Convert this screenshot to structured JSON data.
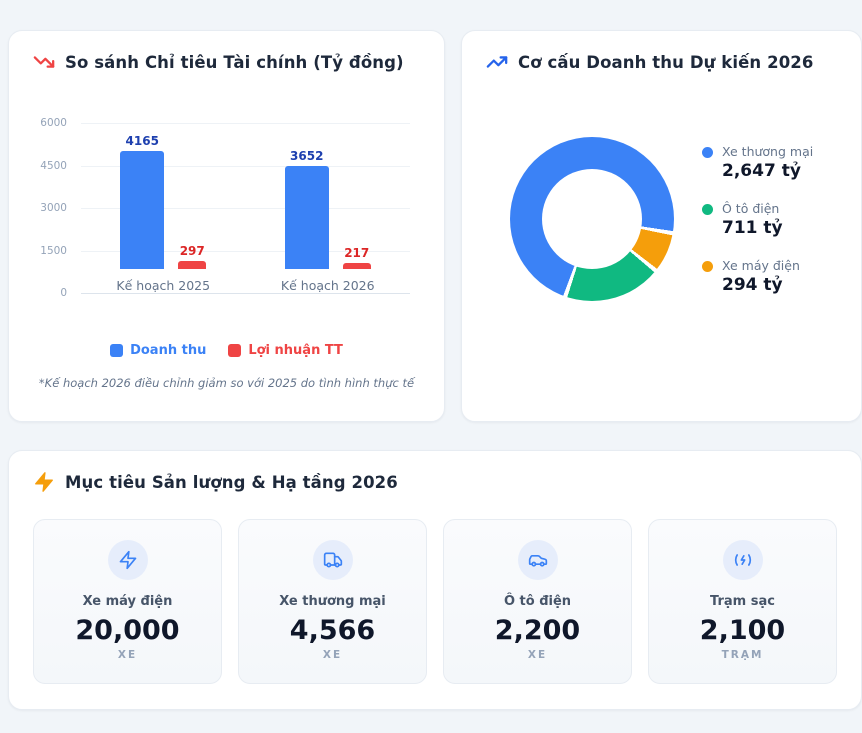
{
  "page": {
    "background": "#f1f5f9",
    "accent_blue": "#3b82f6",
    "accent_red": "#ef4444",
    "accent_green": "#10b981",
    "accent_orange": "#f59e0b"
  },
  "financial_card": {
    "title": "So sánh Chỉ tiêu Tài chính (Tỷ đồng)",
    "footnote": "*Kế hoạch 2026 điều chỉnh giảm so với 2025 do tình hình thực tế"
  },
  "revenue_card": {
    "title": "Cơ cấu Doanh thu Dự kiến 2026"
  },
  "chart_data": [
    {
      "type": "bar",
      "title": "So sánh Chỉ tiêu Tài chính (Tỷ đồng)",
      "categories": [
        "Kế hoạch 2025",
        "Kế hoạch 2026"
      ],
      "series": [
        {
          "name": "Doanh thu",
          "color": "#3b82f6",
          "value_color": "#1e40af",
          "values": [
            4165,
            3652
          ]
        },
        {
          "name": "Lợi nhuận TT",
          "color": "#ef4444",
          "value_color": "#dc2626",
          "values": [
            297,
            217
          ]
        }
      ],
      "ylim": [
        0,
        6000
      ],
      "yticks": [
        6000,
        4500,
        3000,
        1500,
        0
      ],
      "grid": true,
      "legend_position": "bottom"
    },
    {
      "type": "pie",
      "donut": true,
      "title": "Cơ cấu Doanh thu Dự kiến 2026",
      "labels": [
        "Xe thương mại",
        "Ô tô điện",
        "Xe máy điện"
      ],
      "values": [
        2647,
        711,
        294
      ],
      "value_labels": [
        "2,647 tỷ",
        "711 tỷ",
        "294 tỷ"
      ],
      "colors": [
        "#3b82f6",
        "#10b981",
        "#f59e0b"
      ],
      "start_angle": 100,
      "legend_position": "right"
    }
  ],
  "targets_card": {
    "title": "Mục tiêu Sản lượng & Hạ tầng 2026",
    "tiles": [
      {
        "label": "Xe máy điện",
        "value": "20,000",
        "unit": "XE",
        "icon": "bolt-icon"
      },
      {
        "label": "Xe thương mại",
        "value": "4,566",
        "unit": "XE",
        "icon": "truck-icon"
      },
      {
        "label": "Ô tô điện",
        "value": "2,200",
        "unit": "XE",
        "icon": "car-icon"
      },
      {
        "label": "Trạm sạc",
        "value": "2,100",
        "unit": "TRẠM",
        "icon": "charger-icon"
      }
    ]
  }
}
